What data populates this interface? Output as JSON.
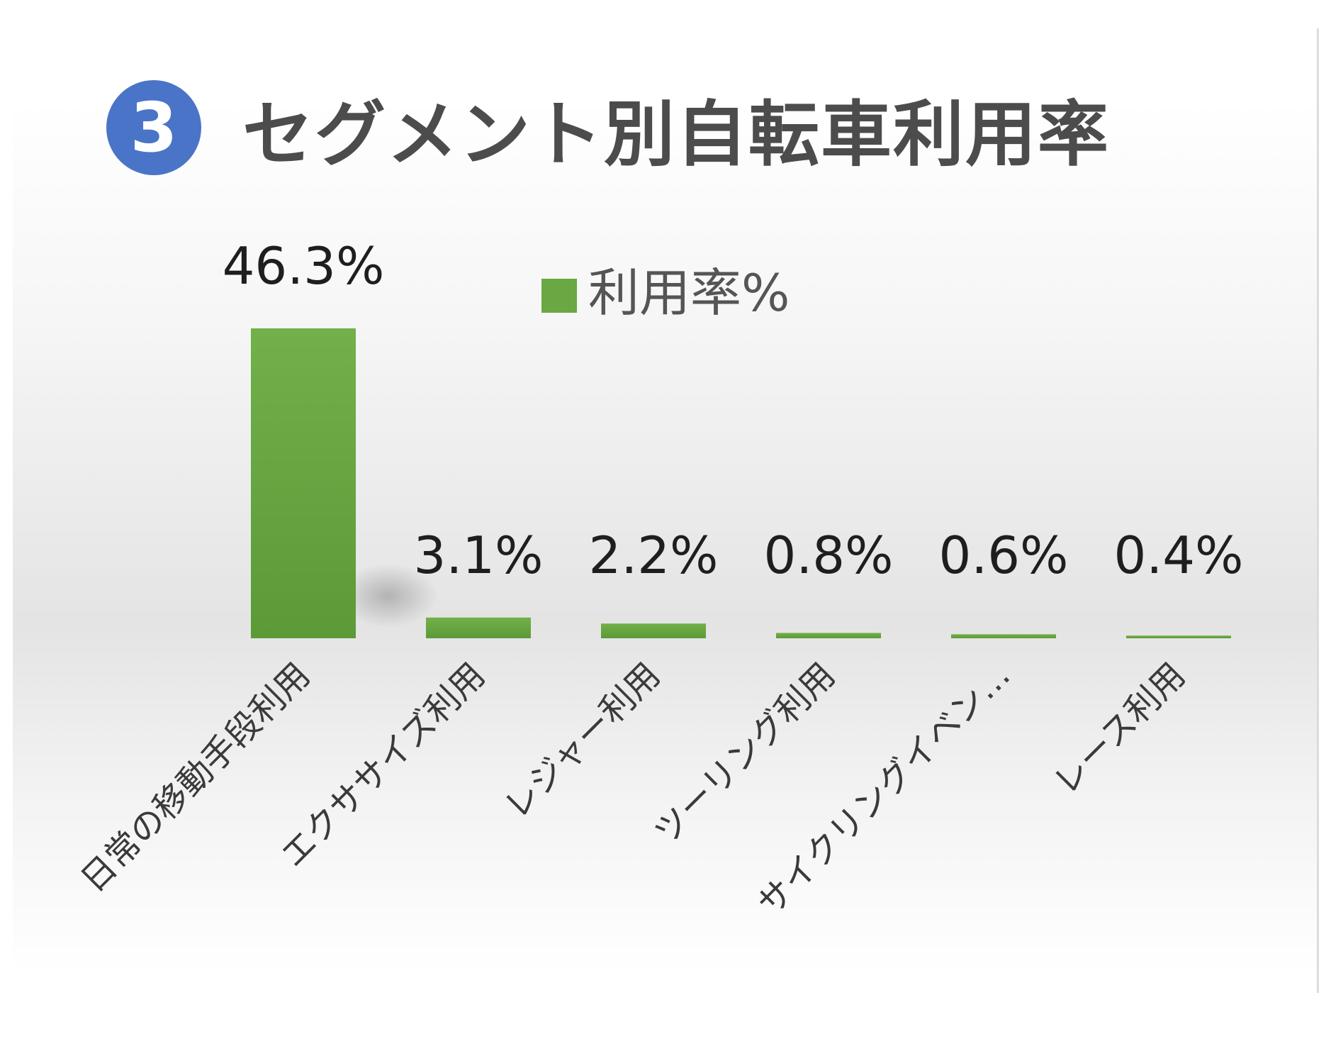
{
  "header": {
    "number": "3",
    "title": "セグメント別自転車利用率"
  },
  "chart_data": {
    "type": "bar",
    "categories": [
      "日常の移動手段利用",
      "エクササイズ利用",
      "レジャー利用",
      "ツーリング利用",
      "サイクリングイベン…",
      "レース利用"
    ],
    "series": [
      {
        "name": "利用率%",
        "values": [
          46.3,
          3.1,
          2.2,
          0.8,
          0.6,
          0.4
        ]
      }
    ],
    "data_labels": [
      "46.3%",
      "3.1%",
      "2.2%",
      "0.8%",
      "0.6%",
      "0.4%"
    ],
    "legend": {
      "label": "利用率%",
      "position": "top-right"
    },
    "bar_color": "#6aa843",
    "ylim": [
      0,
      46.3
    ],
    "grid": false
  }
}
